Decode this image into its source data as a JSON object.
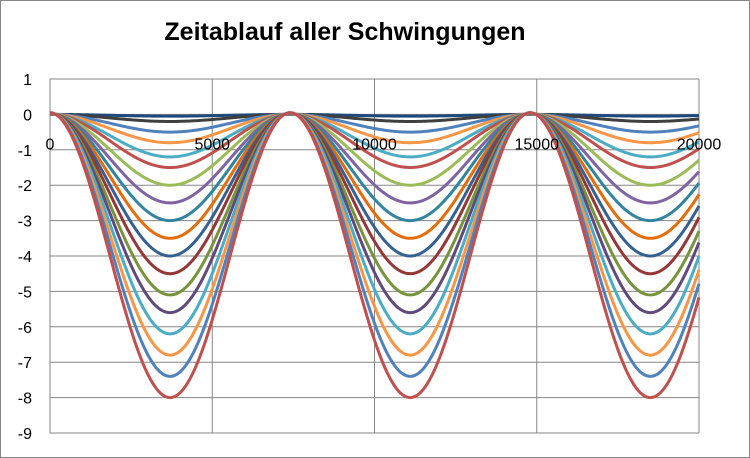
{
  "chart_data": {
    "type": "line",
    "title": "Zeitablauf aller Schwingungen",
    "xlabel": "",
    "ylabel": "",
    "xlim": [
      0,
      20000
    ],
    "ylim": [
      -9,
      1
    ],
    "x_ticks": [
      "0",
      "5000",
      "10000",
      "15000",
      "20000"
    ],
    "y_ticks": [
      "1",
      "0",
      "-1",
      "-2",
      "-3",
      "-4",
      "-5",
      "-6",
      "-7",
      "-8",
      "-9"
    ],
    "grid": true,
    "legend": "none",
    "period": 7400,
    "minima_at_x": [
      3700,
      11100,
      18500
    ],
    "series": [
      {
        "min": -0.05,
        "color": "#1F497D"
      },
      {
        "min": -0.2,
        "color": "#3F3F3F"
      },
      {
        "min": -0.5,
        "color": "#4F81BD"
      },
      {
        "min": -0.8,
        "color": "#F79646"
      },
      {
        "min": -1.2,
        "color": "#4BACC6"
      },
      {
        "min": -1.5,
        "color": "#C0504D"
      },
      {
        "min": -2.0,
        "color": "#9BBB59"
      },
      {
        "min": -2.5,
        "color": "#8064A2"
      },
      {
        "min": -3.0,
        "color": "#31859C"
      },
      {
        "min": -3.5,
        "color": "#E46C0A"
      },
      {
        "min": -4.0,
        "color": "#376092"
      },
      {
        "min": -4.5,
        "color": "#953735"
      },
      {
        "min": -5.1,
        "color": "#77933C"
      },
      {
        "min": -5.6,
        "color": "#604A7B"
      },
      {
        "min": -6.2,
        "color": "#4BACC6"
      },
      {
        "min": -6.8,
        "color": "#F79646"
      },
      {
        "min": -7.4,
        "color": "#4F81BD"
      },
      {
        "min": -8.0,
        "color": "#C0504D"
      }
    ]
  }
}
